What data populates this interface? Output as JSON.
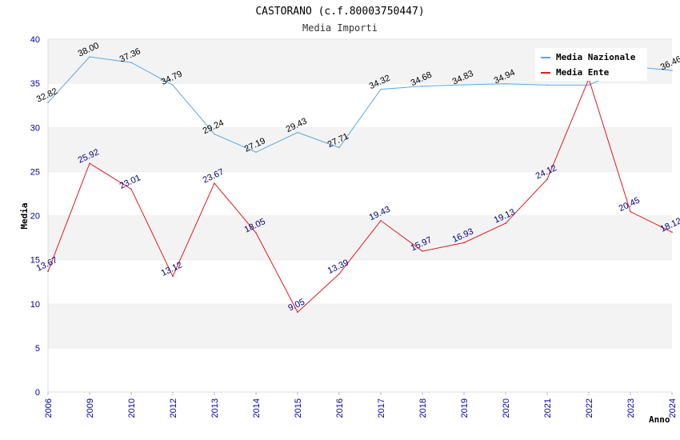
{
  "chart_data": {
    "type": "line",
    "title": "CASTORANO (c.f.80003750447)",
    "subtitle": "Media Importi",
    "xlabel": "Anno",
    "ylabel": "Media",
    "ylim": [
      0,
      40
    ],
    "yticks": [
      "0",
      "5",
      "10",
      "15",
      "20",
      "25",
      "30",
      "35",
      "40"
    ],
    "categories": [
      "2006",
      "2009",
      "2010",
      "2012",
      "2013",
      "2014",
      "2015",
      "2016",
      "2017",
      "2018",
      "2019",
      "2020",
      "2021",
      "2022",
      "2023",
      "2024"
    ],
    "legend_position": "top-right",
    "series": [
      {
        "name": "Media Nazionale",
        "color": "#5aa7e6",
        "values": [
          32.82,
          38.0,
          37.36,
          34.79,
          29.24,
          27.19,
          29.43,
          27.71,
          34.32,
          34.68,
          34.83,
          34.94,
          34.8,
          34.8,
          36.9,
          36.46
        ],
        "labels": [
          "32.82",
          "38.00",
          "37.36",
          "34.79",
          "29.24",
          "27.19",
          "29.43",
          "27.71",
          "34.32",
          "34.68",
          "34.83",
          "34.94",
          "",
          "",
          "",
          "36.46"
        ]
      },
      {
        "name": "Media Ente",
        "color": "#e31a1c",
        "values": [
          13.67,
          25.92,
          23.01,
          13.12,
          23.67,
          18.05,
          9.05,
          13.39,
          19.43,
          15.97,
          16.93,
          19.13,
          24.12,
          35.5,
          20.45,
          18.12
        ],
        "labels": [
          "13.67",
          "25.92",
          "23.01",
          "13.12",
          "23.67",
          "18.05",
          "9.05",
          "13.39",
          "19.43",
          "15.97",
          "16.93",
          "19.13",
          "24.12",
          "",
          "20.45",
          "18.12"
        ]
      }
    ]
  }
}
